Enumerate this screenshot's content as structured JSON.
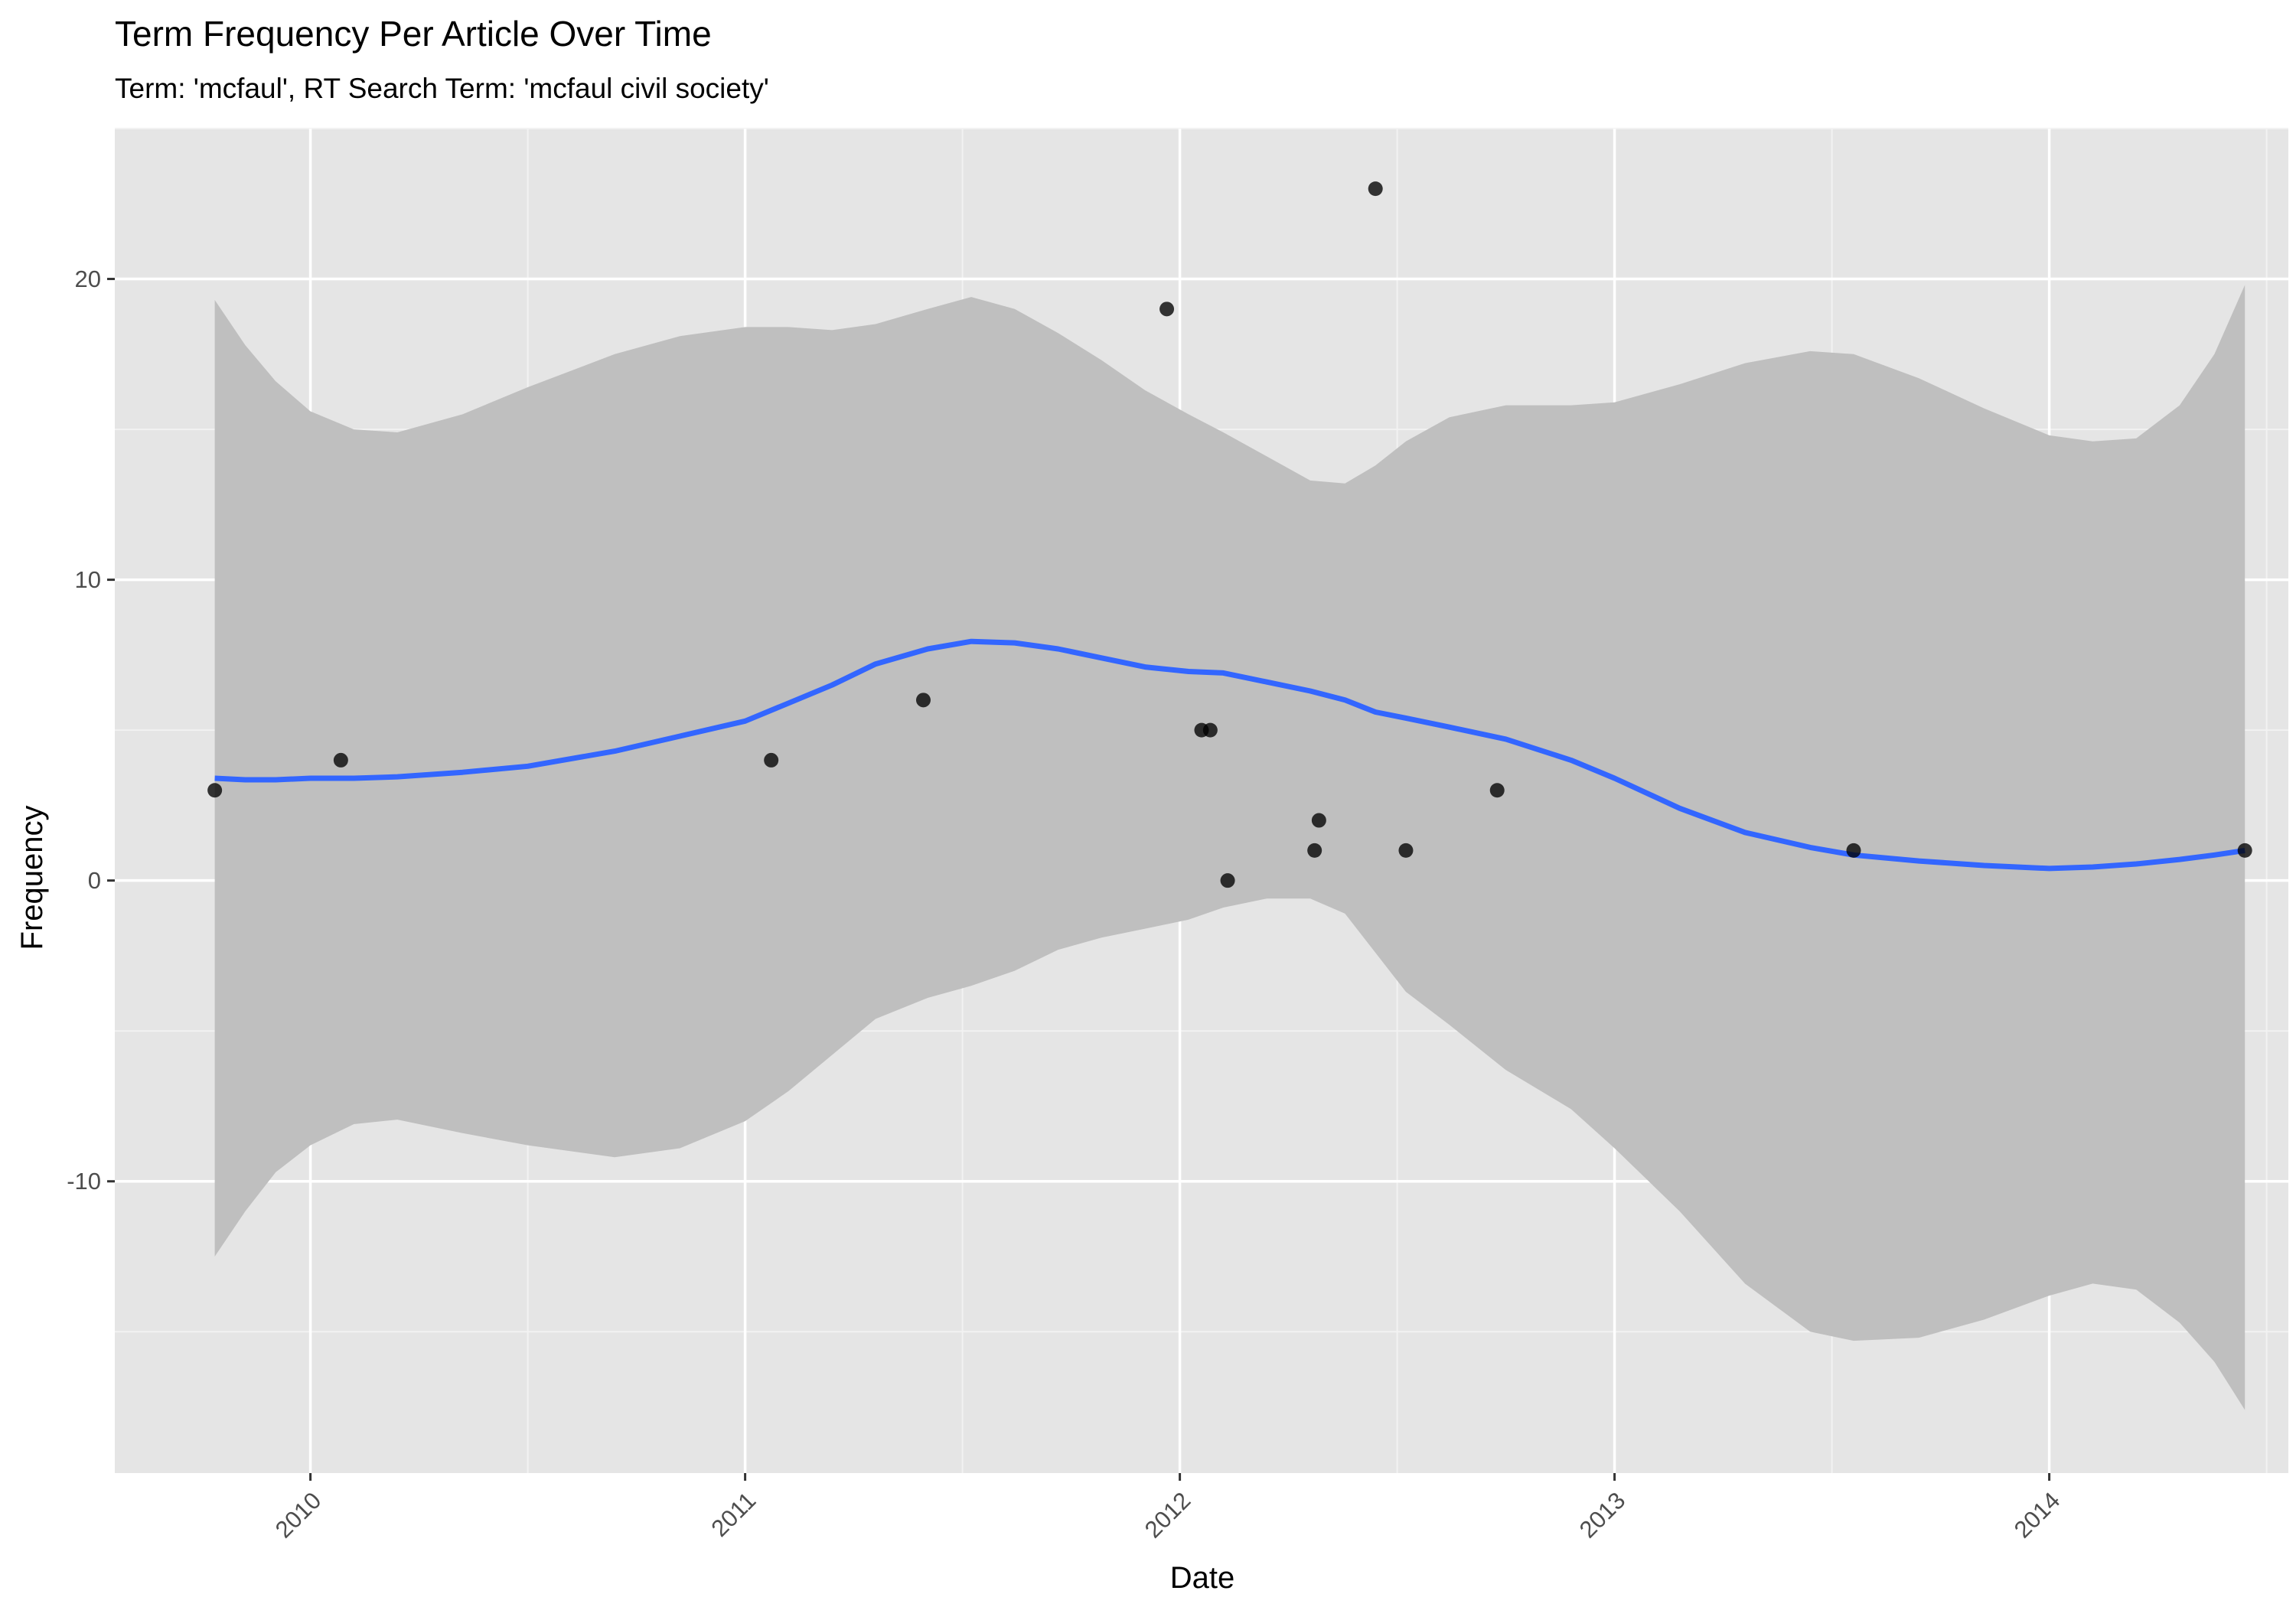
{
  "chart_data": {
    "type": "scatter",
    "title": "Term Frequency Per Article Over Time",
    "subtitle": "Term: 'mcfaul', RT Search Term: 'mcfaul civil society'",
    "xlabel": "Date",
    "ylabel": "Frequency",
    "xlim": [
      2009.55,
      2014.55
    ],
    "ylim": [
      -19.7,
      25.0
    ],
    "x_ticks": [
      2010,
      2011,
      2012,
      2013,
      2014
    ],
    "x_tick_labels": [
      "2010",
      "2011",
      "2012",
      "2013",
      "2014"
    ],
    "y_ticks": [
      -10,
      0,
      10,
      20
    ],
    "y_tick_labels": [
      "-10",
      "0",
      "10",
      "20"
    ],
    "grid": true,
    "series": [
      {
        "kind": "points",
        "color": "#000000",
        "points": [
          {
            "x": 2009.78,
            "y": 3
          },
          {
            "x": 2010.07,
            "y": 4
          },
          {
            "x": 2011.06,
            "y": 4
          },
          {
            "x": 2011.41,
            "y": 6
          },
          {
            "x": 2011.97,
            "y": 19
          },
          {
            "x": 2012.05,
            "y": 5
          },
          {
            "x": 2012.07,
            "y": 5
          },
          {
            "x": 2012.11,
            "y": 0
          },
          {
            "x": 2012.31,
            "y": 1
          },
          {
            "x": 2012.32,
            "y": 2
          },
          {
            "x": 2012.45,
            "y": 23
          },
          {
            "x": 2012.52,
            "y": 1
          },
          {
            "x": 2012.73,
            "y": 3
          },
          {
            "x": 2013.55,
            "y": 1
          },
          {
            "x": 2014.45,
            "y": 1
          }
        ]
      },
      {
        "kind": "smooth",
        "color": "#3366FF",
        "band_color": "#bfbfbf",
        "points": [
          {
            "x": 2009.78,
            "y": 3.4,
            "lower": -12.5,
            "upper": 19.3
          },
          {
            "x": 2009.85,
            "y": 3.35,
            "lower": -11.0,
            "upper": 17.8
          },
          {
            "x": 2009.92,
            "y": 3.35,
            "lower": -9.7,
            "upper": 16.6
          },
          {
            "x": 2010.0,
            "y": 3.4,
            "lower": -8.8,
            "upper": 15.6
          },
          {
            "x": 2010.1,
            "y": 3.4,
            "lower": -8.1,
            "upper": 15.0
          },
          {
            "x": 2010.2,
            "y": 3.45,
            "lower": -7.95,
            "upper": 14.9
          },
          {
            "x": 2010.35,
            "y": 3.6,
            "lower": -8.4,
            "upper": 15.5
          },
          {
            "x": 2010.5,
            "y": 3.8,
            "lower": -8.8,
            "upper": 16.4
          },
          {
            "x": 2010.7,
            "y": 4.3,
            "lower": -9.2,
            "upper": 17.5
          },
          {
            "x": 2010.85,
            "y": 4.8,
            "lower": -8.9,
            "upper": 18.1
          },
          {
            "x": 2011.0,
            "y": 5.3,
            "lower": -8.0,
            "upper": 18.4
          },
          {
            "x": 2011.1,
            "y": 5.9,
            "lower": -7.0,
            "upper": 18.4
          },
          {
            "x": 2011.2,
            "y": 6.5,
            "lower": -5.8,
            "upper": 18.3
          },
          {
            "x": 2011.3,
            "y": 7.2,
            "lower": -4.6,
            "upper": 18.5
          },
          {
            "x": 2011.42,
            "y": 7.7,
            "lower": -3.9,
            "upper": 19.0
          },
          {
            "x": 2011.52,
            "y": 7.95,
            "lower": -3.5,
            "upper": 19.4
          },
          {
            "x": 2011.62,
            "y": 7.9,
            "lower": -3.0,
            "upper": 19.0
          },
          {
            "x": 2011.72,
            "y": 7.7,
            "lower": -2.3,
            "upper": 18.2
          },
          {
            "x": 2011.82,
            "y": 7.4,
            "lower": -1.9,
            "upper": 17.3
          },
          {
            "x": 2011.92,
            "y": 7.1,
            "lower": -1.6,
            "upper": 16.3
          },
          {
            "x": 2012.02,
            "y": 6.95,
            "lower": -1.3,
            "upper": 15.5
          },
          {
            "x": 2012.1,
            "y": 6.9,
            "lower": -0.9,
            "upper": 14.9
          },
          {
            "x": 2012.2,
            "y": 6.6,
            "lower": -0.6,
            "upper": 14.1
          },
          {
            "x": 2012.3,
            "y": 6.3,
            "lower": -0.6,
            "upper": 13.3
          },
          {
            "x": 2012.38,
            "y": 6.0,
            "lower": -1.1,
            "upper": 13.2
          },
          {
            "x": 2012.45,
            "y": 5.6,
            "lower": -2.4,
            "upper": 13.8
          },
          {
            "x": 2012.52,
            "y": 5.4,
            "lower": -3.7,
            "upper": 14.6
          },
          {
            "x": 2012.62,
            "y": 5.1,
            "lower": -4.8,
            "upper": 15.4
          },
          {
            "x": 2012.75,
            "y": 4.7,
            "lower": -6.3,
            "upper": 15.8
          },
          {
            "x": 2012.9,
            "y": 4.0,
            "lower": -7.6,
            "upper": 15.8
          },
          {
            "x": 2013.0,
            "y": 3.4,
            "lower": -8.9,
            "upper": 15.9
          },
          {
            "x": 2013.15,
            "y": 2.4,
            "lower": -11.0,
            "upper": 16.5
          },
          {
            "x": 2013.3,
            "y": 1.6,
            "lower": -13.4,
            "upper": 17.2
          },
          {
            "x": 2013.45,
            "y": 1.1,
            "lower": -15.0,
            "upper": 17.6
          },
          {
            "x": 2013.55,
            "y": 0.85,
            "lower": -15.3,
            "upper": 17.5
          },
          {
            "x": 2013.7,
            "y": 0.65,
            "lower": -15.2,
            "upper": 16.7
          },
          {
            "x": 2013.85,
            "y": 0.5,
            "lower": -14.6,
            "upper": 15.7
          },
          {
            "x": 2014.0,
            "y": 0.4,
            "lower": -13.8,
            "upper": 14.8
          },
          {
            "x": 2014.1,
            "y": 0.45,
            "lower": -13.4,
            "upper": 14.6
          },
          {
            "x": 2014.2,
            "y": 0.55,
            "lower": -13.6,
            "upper": 14.7
          },
          {
            "x": 2014.3,
            "y": 0.7,
            "lower": -14.7,
            "upper": 15.8
          },
          {
            "x": 2014.38,
            "y": 0.85,
            "lower": -16.0,
            "upper": 17.5
          },
          {
            "x": 2014.45,
            "y": 1.0,
            "lower": -17.6,
            "upper": 19.8
          }
        ]
      }
    ]
  },
  "colors": {
    "panel_background": "#e5e5e5",
    "grid_major": "#ffffff",
    "grid_minor": "#f2f2f2",
    "points": "#000000",
    "smooth_line": "#3366FF",
    "confidence_band": "#bfbfbf"
  }
}
